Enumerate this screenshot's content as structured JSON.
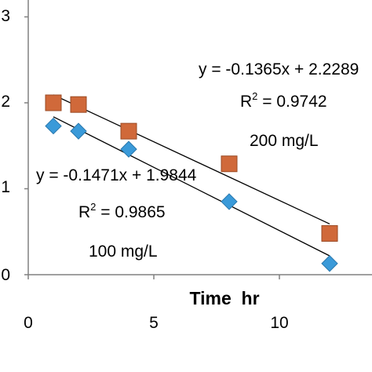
{
  "chart_data": {
    "type": "scatter",
    "xlabel": "Time  hr",
    "ylabel": "",
    "xlim": [
      0,
      12.5
    ],
    "ylim": [
      0,
      3
    ],
    "x_ticks": [
      "0",
      "5",
      "10"
    ],
    "y_ticks": [
      "0",
      "1",
      "2",
      "3"
    ],
    "grid": false,
    "series": [
      {
        "marker": "square",
        "color": "#D0693A",
        "x": [
          1,
          2,
          4,
          8,
          12
        ],
        "y": [
          2.0,
          1.98,
          1.67,
          1.29,
          0.48
        ]
      },
      {
        "marker": "diamond",
        "color": "#3A9AD9",
        "x": [
          1,
          2,
          4,
          8,
          12
        ],
        "y": [
          1.73,
          1.67,
          1.46,
          0.85,
          0.13
        ]
      }
    ],
    "trendlines": [
      {
        "slope": -0.1365,
        "intercept": 2.2289,
        "x_range": [
          1,
          12
        ],
        "equation": "y = -0.1365x + 2.2289",
        "r2_prefix": "R",
        "r2_exp": "2",
        "r2_value": " = 0.9742",
        "concentration": "200 mg/L"
      },
      {
        "slope": -0.1471,
        "intercept": 1.9844,
        "x_range": [
          1,
          12
        ],
        "equation": "y = -0.1471x + 1.9844",
        "r2_prefix": "R",
        "r2_exp": "2",
        "r2_value": " = 0.9865",
        "concentration": "100 mg/L"
      }
    ]
  }
}
